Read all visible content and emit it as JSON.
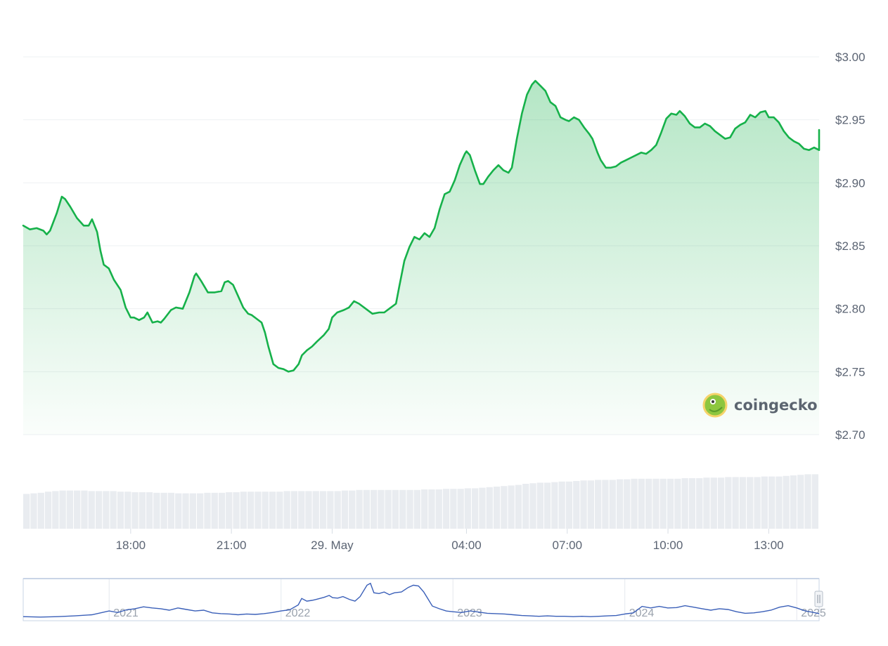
{
  "chart_data": {
    "type": "area",
    "title": "",
    "xlabel": "",
    "ylabel": "",
    "currency_prefix": "$",
    "ylim": [
      2.7,
      3.0
    ],
    "yticks": [
      "$3.00",
      "$2.95",
      "$2.90",
      "$2.85",
      "$2.80",
      "$2.75",
      "$2.70"
    ],
    "ytick_values": [
      3.0,
      2.95,
      2.9,
      2.85,
      2.8,
      2.75,
      2.7
    ],
    "xlim_hours": [
      14.8,
      38.5
    ],
    "xticks": [
      {
        "label": "18:00",
        "hour": 18
      },
      {
        "label": "21:00",
        "hour": 21
      },
      {
        "label": "29. May",
        "hour": 24
      },
      {
        "label": "04:00",
        "hour": 28
      },
      {
        "label": "07:00",
        "hour": 31
      },
      {
        "label": "10:00",
        "hour": 34
      },
      {
        "label": "13:00",
        "hour": 37
      }
    ],
    "grid": true,
    "line_color": "#16b14a",
    "fill_color": "#16b14a",
    "series": [
      {
        "points": [
          [
            14.8,
            2.866
          ],
          [
            15.0,
            2.863
          ],
          [
            15.2,
            2.864
          ],
          [
            15.4,
            2.862
          ],
          [
            15.5,
            2.859
          ],
          [
            15.6,
            2.862
          ],
          [
            15.8,
            2.876
          ],
          [
            15.95,
            2.889
          ],
          [
            16.05,
            2.887
          ],
          [
            16.2,
            2.881
          ],
          [
            16.4,
            2.872
          ],
          [
            16.6,
            2.866
          ],
          [
            16.75,
            2.866
          ],
          [
            16.85,
            2.871
          ],
          [
            17.0,
            2.861
          ],
          [
            17.1,
            2.846
          ],
          [
            17.2,
            2.835
          ],
          [
            17.35,
            2.832
          ],
          [
            17.5,
            2.823
          ],
          [
            17.7,
            2.815
          ],
          [
            17.85,
            2.801
          ],
          [
            18.0,
            2.793
          ],
          [
            18.1,
            2.793
          ],
          [
            18.25,
            2.791
          ],
          [
            18.4,
            2.793
          ],
          [
            18.5,
            2.797
          ],
          [
            18.65,
            2.789
          ],
          [
            18.8,
            2.79
          ],
          [
            18.9,
            2.789
          ],
          [
            19.0,
            2.792
          ],
          [
            19.2,
            2.799
          ],
          [
            19.35,
            2.801
          ],
          [
            19.55,
            2.8
          ],
          [
            19.75,
            2.813
          ],
          [
            19.9,
            2.826
          ],
          [
            19.95,
            2.828
          ],
          [
            20.1,
            2.822
          ],
          [
            20.3,
            2.813
          ],
          [
            20.5,
            2.813
          ],
          [
            20.7,
            2.814
          ],
          [
            20.8,
            2.821
          ],
          [
            20.9,
            2.822
          ],
          [
            21.05,
            2.819
          ],
          [
            21.2,
            2.81
          ],
          [
            21.35,
            2.801
          ],
          [
            21.5,
            2.796
          ],
          [
            21.6,
            2.795
          ],
          [
            21.75,
            2.792
          ],
          [
            21.9,
            2.789
          ],
          [
            22.0,
            2.781
          ],
          [
            22.1,
            2.77
          ],
          [
            22.25,
            2.756
          ],
          [
            22.4,
            2.753
          ],
          [
            22.55,
            2.752
          ],
          [
            22.7,
            2.75
          ],
          [
            22.85,
            2.751
          ],
          [
            23.0,
            2.756
          ],
          [
            23.1,
            2.763
          ],
          [
            23.25,
            2.767
          ],
          [
            23.4,
            2.77
          ],
          [
            23.55,
            2.774
          ],
          [
            23.75,
            2.779
          ],
          [
            23.9,
            2.784
          ],
          [
            24.0,
            2.793
          ],
          [
            24.15,
            2.797
          ],
          [
            24.35,
            2.799
          ],
          [
            24.5,
            2.801
          ],
          [
            24.65,
            2.806
          ],
          [
            24.8,
            2.804
          ],
          [
            25.0,
            2.8
          ],
          [
            25.2,
            2.796
          ],
          [
            25.4,
            2.797
          ],
          [
            25.55,
            2.797
          ],
          [
            25.7,
            2.8
          ],
          [
            25.9,
            2.804
          ],
          [
            26.0,
            2.818
          ],
          [
            26.15,
            2.838
          ],
          [
            26.3,
            2.849
          ],
          [
            26.45,
            2.857
          ],
          [
            26.6,
            2.855
          ],
          [
            26.75,
            2.86
          ],
          [
            26.9,
            2.857
          ],
          [
            27.05,
            2.864
          ],
          [
            27.2,
            2.879
          ],
          [
            27.35,
            2.891
          ],
          [
            27.5,
            2.893
          ],
          [
            27.65,
            2.902
          ],
          [
            27.8,
            2.914
          ],
          [
            27.95,
            2.923
          ],
          [
            28.0,
            2.925
          ],
          [
            28.1,
            2.922
          ],
          [
            28.25,
            2.91
          ],
          [
            28.4,
            2.899
          ],
          [
            28.5,
            2.899
          ],
          [
            28.65,
            2.905
          ],
          [
            28.8,
            2.91
          ],
          [
            28.95,
            2.914
          ],
          [
            29.1,
            2.91
          ],
          [
            29.25,
            2.908
          ],
          [
            29.35,
            2.912
          ],
          [
            29.5,
            2.935
          ],
          [
            29.65,
            2.955
          ],
          [
            29.8,
            2.97
          ],
          [
            29.95,
            2.978
          ],
          [
            30.05,
            2.981
          ],
          [
            30.2,
            2.977
          ],
          [
            30.35,
            2.973
          ],
          [
            30.5,
            2.964
          ],
          [
            30.65,
            2.961
          ],
          [
            30.8,
            2.952
          ],
          [
            30.95,
            2.95
          ],
          [
            31.05,
            2.949
          ],
          [
            31.2,
            2.952
          ],
          [
            31.35,
            2.95
          ],
          [
            31.5,
            2.944
          ],
          [
            31.65,
            2.939
          ],
          [
            31.75,
            2.935
          ],
          [
            31.9,
            2.924
          ],
          [
            32.0,
            2.918
          ],
          [
            32.15,
            2.912
          ],
          [
            32.3,
            2.912
          ],
          [
            32.45,
            2.913
          ],
          [
            32.6,
            2.916
          ],
          [
            32.75,
            2.918
          ],
          [
            32.9,
            2.92
          ],
          [
            33.05,
            2.922
          ],
          [
            33.2,
            2.924
          ],
          [
            33.35,
            2.923
          ],
          [
            33.5,
            2.926
          ],
          [
            33.65,
            2.93
          ],
          [
            33.8,
            2.94
          ],
          [
            33.95,
            2.951
          ],
          [
            34.1,
            2.955
          ],
          [
            34.25,
            2.954
          ],
          [
            34.35,
            2.957
          ],
          [
            34.5,
            2.953
          ],
          [
            34.65,
            2.947
          ],
          [
            34.8,
            2.944
          ],
          [
            34.95,
            2.944
          ],
          [
            35.1,
            2.947
          ],
          [
            35.25,
            2.945
          ],
          [
            35.4,
            2.941
          ],
          [
            35.55,
            2.938
          ],
          [
            35.7,
            2.935
          ],
          [
            35.85,
            2.936
          ],
          [
            36.0,
            2.943
          ],
          [
            36.15,
            2.946
          ],
          [
            36.3,
            2.948
          ],
          [
            36.45,
            2.954
          ],
          [
            36.6,
            2.952
          ],
          [
            36.75,
            2.956
          ],
          [
            36.9,
            2.957
          ],
          [
            37.0,
            2.952
          ],
          [
            37.15,
            2.952
          ],
          [
            37.3,
            2.948
          ],
          [
            37.45,
            2.941
          ],
          [
            37.6,
            2.936
          ],
          [
            37.75,
            2.933
          ],
          [
            37.9,
            2.931
          ],
          [
            38.05,
            2.927
          ],
          [
            38.2,
            2.926
          ],
          [
            38.35,
            2.928
          ],
          [
            38.5,
            2.926
          ],
          [
            38.65,
            2.928
          ],
          [
            38.8,
            2.929
          ],
          [
            38.95,
            2.936
          ],
          [
            39.1,
            2.942
          ],
          [
            39.25,
            2.938
          ],
          [
            39.4,
            2.932
          ],
          [
            39.55,
            2.93
          ],
          [
            39.7,
            2.926
          ],
          [
            39.8,
            2.927
          ]
        ]
      }
    ],
    "volume": {
      "color": "#e9ecf0",
      "values": [
        0.62,
        0.63,
        0.64,
        0.66,
        0.67,
        0.68,
        0.68,
        0.68,
        0.68,
        0.67,
        0.67,
        0.67,
        0.67,
        0.66,
        0.66,
        0.65,
        0.65,
        0.65,
        0.64,
        0.64,
        0.64,
        0.63,
        0.63,
        0.63,
        0.63,
        0.64,
        0.64,
        0.64,
        0.65,
        0.65,
        0.66,
        0.66,
        0.66,
        0.66,
        0.66,
        0.66,
        0.67,
        0.67,
        0.67,
        0.67,
        0.67,
        0.67,
        0.67,
        0.67,
        0.68,
        0.68,
        0.69,
        0.69,
        0.69,
        0.69,
        0.69,
        0.69,
        0.69,
        0.69,
        0.69,
        0.7,
        0.7,
        0.7,
        0.71,
        0.71,
        0.71,
        0.72,
        0.72,
        0.73,
        0.74,
        0.75,
        0.76,
        0.77,
        0.78,
        0.8,
        0.81,
        0.82,
        0.82,
        0.83,
        0.84,
        0.84,
        0.85,
        0.86,
        0.86,
        0.87,
        0.87,
        0.87,
        0.88,
        0.88,
        0.89,
        0.89,
        0.89,
        0.89,
        0.89,
        0.89,
        0.89,
        0.9,
        0.9,
        0.9,
        0.91,
        0.91,
        0.91,
        0.92,
        0.92,
        0.92,
        0.92,
        0.92,
        0.93,
        0.93,
        0.93,
        0.94,
        0.95,
        0.96,
        0.97,
        0.97
      ]
    },
    "navigator": {
      "labels": [
        "2021",
        "2022",
        "2023",
        "2024",
        "2025"
      ],
      "label_years": [
        2021,
        2022,
        2023,
        2024,
        2025
      ],
      "x_range_years": [
        2020.5,
        2025.13
      ],
      "line_color": "#3a5fb8",
      "points": [
        [
          2020.5,
          0.07
        ],
        [
          2020.6,
          0.06
        ],
        [
          2020.7,
          0.07
        ],
        [
          2020.8,
          0.09
        ],
        [
          2020.9,
          0.12
        ],
        [
          2021.0,
          0.22
        ],
        [
          2021.05,
          0.18
        ],
        [
          2021.1,
          0.25
        ],
        [
          2021.15,
          0.28
        ],
        [
          2021.2,
          0.33
        ],
        [
          2021.25,
          0.3
        ],
        [
          2021.3,
          0.28
        ],
        [
          2021.35,
          0.24
        ],
        [
          2021.4,
          0.3
        ],
        [
          2021.45,
          0.26
        ],
        [
          2021.5,
          0.22
        ],
        [
          2021.55,
          0.24
        ],
        [
          2021.6,
          0.17
        ],
        [
          2021.65,
          0.15
        ],
        [
          2021.7,
          0.14
        ],
        [
          2021.75,
          0.12
        ],
        [
          2021.8,
          0.14
        ],
        [
          2021.85,
          0.13
        ],
        [
          2021.9,
          0.15
        ],
        [
          2021.95,
          0.18
        ],
        [
          2022.0,
          0.22
        ],
        [
          2022.05,
          0.25
        ],
        [
          2022.1,
          0.38
        ],
        [
          2022.12,
          0.55
        ],
        [
          2022.15,
          0.48
        ],
        [
          2022.18,
          0.5
        ],
        [
          2022.2,
          0.52
        ],
        [
          2022.25,
          0.58
        ],
        [
          2022.28,
          0.63
        ],
        [
          2022.3,
          0.57
        ],
        [
          2022.33,
          0.56
        ],
        [
          2022.36,
          0.6
        ],
        [
          2022.4,
          0.52
        ],
        [
          2022.43,
          0.48
        ],
        [
          2022.46,
          0.6
        ],
        [
          2022.5,
          0.9
        ],
        [
          2022.52,
          0.95
        ],
        [
          2022.54,
          0.7
        ],
        [
          2022.57,
          0.68
        ],
        [
          2022.6,
          0.72
        ],
        [
          2022.63,
          0.65
        ],
        [
          2022.66,
          0.7
        ],
        [
          2022.7,
          0.72
        ],
        [
          2022.74,
          0.84
        ],
        [
          2022.77,
          0.9
        ],
        [
          2022.8,
          0.88
        ],
        [
          2022.83,
          0.72
        ],
        [
          2022.86,
          0.5
        ],
        [
          2022.88,
          0.35
        ],
        [
          2022.92,
          0.28
        ],
        [
          2022.96,
          0.22
        ],
        [
          2023.0,
          0.2
        ],
        [
          2023.05,
          0.18
        ],
        [
          2023.1,
          0.22
        ],
        [
          2023.15,
          0.19
        ],
        [
          2023.2,
          0.16
        ],
        [
          2023.25,
          0.15
        ],
        [
          2023.3,
          0.14
        ],
        [
          2023.35,
          0.12
        ],
        [
          2023.4,
          0.1
        ],
        [
          2023.45,
          0.09
        ],
        [
          2023.5,
          0.08
        ],
        [
          2023.55,
          0.09
        ],
        [
          2023.6,
          0.08
        ],
        [
          2023.65,
          0.08
        ],
        [
          2023.7,
          0.07
        ],
        [
          2023.75,
          0.08
        ],
        [
          2023.8,
          0.07
        ],
        [
          2023.85,
          0.08
        ],
        [
          2023.9,
          0.09
        ],
        [
          2023.95,
          0.1
        ],
        [
          2024.0,
          0.14
        ],
        [
          2024.05,
          0.17
        ],
        [
          2024.1,
          0.34
        ],
        [
          2024.15,
          0.3
        ],
        [
          2024.2,
          0.34
        ],
        [
          2024.25,
          0.3
        ],
        [
          2024.3,
          0.31
        ],
        [
          2024.35,
          0.36
        ],
        [
          2024.4,
          0.32
        ],
        [
          2024.45,
          0.28
        ],
        [
          2024.5,
          0.24
        ],
        [
          2024.55,
          0.28
        ],
        [
          2024.6,
          0.26
        ],
        [
          2024.65,
          0.2
        ],
        [
          2024.7,
          0.16
        ],
        [
          2024.75,
          0.17
        ],
        [
          2024.8,
          0.2
        ],
        [
          2024.85,
          0.24
        ],
        [
          2024.9,
          0.32
        ],
        [
          2024.95,
          0.36
        ],
        [
          2025.0,
          0.3
        ],
        [
          2025.05,
          0.22
        ],
        [
          2025.1,
          0.18
        ],
        [
          2025.13,
          0.15
        ]
      ]
    }
  },
  "watermark": {
    "text": "coingecko",
    "icon": "gecko-logo-icon"
  },
  "navigator_handle": {
    "icon": "drag-handle-icon"
  }
}
